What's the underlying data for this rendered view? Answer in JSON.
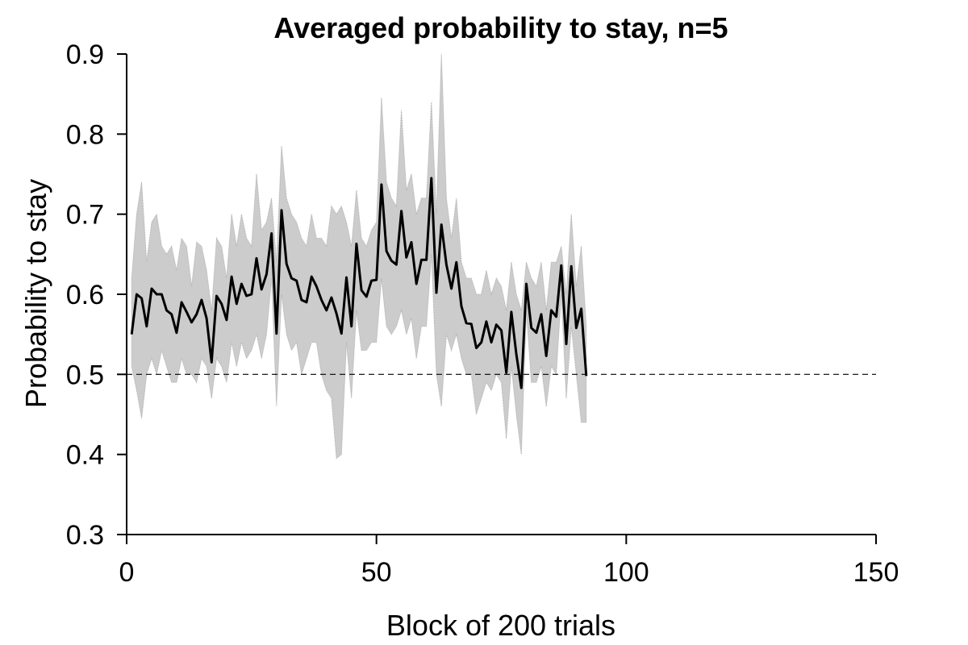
{
  "chart_data": {
    "type": "line",
    "title": "Averaged probability to stay, n=5",
    "xlabel": "Block of 200 trials",
    "ylabel": "Probability to stay",
    "xlim": [
      0,
      150
    ],
    "ylim": [
      0.3,
      0.9
    ],
    "xticks": [
      0,
      50,
      100,
      150
    ],
    "yticks": [
      0.3,
      0.4,
      0.5,
      0.6,
      0.7,
      0.8,
      0.9
    ],
    "xtick_labels": [
      "0",
      "50",
      "100",
      "150"
    ],
    "ytick_labels": [
      "0.3",
      "0.4",
      "0.5",
      "0.6",
      "0.7",
      "0.8",
      "0.9"
    ],
    "reference_line": {
      "y": 0.5,
      "style": "dashed"
    },
    "grid": false,
    "colors": {
      "mean": "#000000",
      "band": "#cccccc",
      "reference": "#000000"
    },
    "series": [
      {
        "x": [
          1,
          2,
          3,
          4,
          5,
          6,
          7,
          8,
          9,
          10,
          11,
          12,
          13,
          14,
          15,
          16,
          17,
          18,
          19,
          20,
          21,
          22,
          23,
          24,
          25,
          26,
          27,
          28,
          29,
          30,
          31,
          32,
          33,
          34,
          35,
          36,
          37,
          38,
          39,
          40,
          41,
          42,
          43,
          44,
          45,
          46,
          47,
          48,
          49,
          50,
          51,
          52,
          53,
          54,
          55,
          56,
          57,
          58,
          59,
          60,
          61,
          62,
          63,
          64,
          65,
          66,
          67,
          68,
          69,
          70,
          71,
          72,
          73,
          74,
          75,
          76,
          77,
          78,
          79,
          80,
          81,
          82,
          83,
          84,
          85,
          86,
          87,
          88,
          89,
          90,
          91,
          92
        ],
        "mean": [
          0.55,
          0.6,
          0.595,
          0.56,
          0.607,
          0.6,
          0.6,
          0.58,
          0.575,
          0.552,
          0.59,
          0.578,
          0.565,
          0.575,
          0.593,
          0.57,
          0.515,
          0.598,
          0.588,
          0.568,
          0.622,
          0.588,
          0.613,
          0.598,
          0.6,
          0.645,
          0.606,
          0.625,
          0.676,
          0.551,
          0.705,
          0.638,
          0.62,
          0.617,
          0.593,
          0.59,
          0.622,
          0.61,
          0.593,
          0.58,
          0.596,
          0.576,
          0.551,
          0.621,
          0.56,
          0.663,
          0.605,
          0.597,
          0.617,
          0.618,
          0.737,
          0.654,
          0.642,
          0.637,
          0.704,
          0.646,
          0.665,
          0.613,
          0.643,
          0.643,
          0.745,
          0.602,
          0.687,
          0.637,
          0.607,
          0.64,
          0.585,
          0.564,
          0.563,
          0.533,
          0.54,
          0.566,
          0.54,
          0.562,
          0.555,
          0.502,
          0.578,
          0.525,
          0.483,
          0.613,
          0.558,
          0.552,
          0.575,
          0.523,
          0.58,
          0.572,
          0.636,
          0.538,
          0.635,
          0.558,
          0.582,
          0.498
        ],
        "upper": [
          0.62,
          0.7,
          0.74,
          0.64,
          0.69,
          0.7,
          0.66,
          0.65,
          0.66,
          0.63,
          0.67,
          0.66,
          0.61,
          0.665,
          0.66,
          0.63,
          0.58,
          0.67,
          0.66,
          0.62,
          0.7,
          0.66,
          0.7,
          0.67,
          0.66,
          0.75,
          0.68,
          0.69,
          0.72,
          0.64,
          0.785,
          0.72,
          0.7,
          0.69,
          0.67,
          0.66,
          0.7,
          0.67,
          0.67,
          0.66,
          0.71,
          0.7,
          0.71,
          0.69,
          0.66,
          0.73,
          0.67,
          0.66,
          0.68,
          0.69,
          0.845,
          0.74,
          0.72,
          0.71,
          0.83,
          0.73,
          0.75,
          0.7,
          0.72,
          0.72,
          0.84,
          0.7,
          0.9,
          0.72,
          0.67,
          0.72,
          0.64,
          0.62,
          0.62,
          0.6,
          0.6,
          0.63,
          0.6,
          0.62,
          0.61,
          0.58,
          0.64,
          0.6,
          0.58,
          0.64,
          0.62,
          0.61,
          0.64,
          0.58,
          0.64,
          0.64,
          0.66,
          0.6,
          0.7,
          0.61,
          0.66,
          0.56
        ],
        "lower": [
          0.51,
          0.48,
          0.445,
          0.5,
          0.52,
          0.5,
          0.53,
          0.51,
          0.49,
          0.49,
          0.52,
          0.5,
          0.5,
          0.49,
          0.52,
          0.51,
          0.47,
          0.52,
          0.51,
          0.49,
          0.54,
          0.51,
          0.54,
          0.52,
          0.53,
          0.55,
          0.52,
          0.55,
          0.62,
          0.46,
          0.6,
          0.55,
          0.53,
          0.54,
          0.5,
          0.52,
          0.54,
          0.54,
          0.5,
          0.48,
          0.47,
          0.395,
          0.4,
          0.54,
          0.47,
          0.58,
          0.53,
          0.53,
          0.54,
          0.54,
          0.62,
          0.56,
          0.55,
          0.56,
          0.58,
          0.55,
          0.57,
          0.52,
          0.56,
          0.56,
          0.65,
          0.5,
          0.46,
          0.55,
          0.53,
          0.55,
          0.52,
          0.5,
          0.5,
          0.45,
          0.47,
          0.49,
          0.48,
          0.5,
          0.49,
          0.42,
          0.51,
          0.45,
          0.4,
          0.58,
          0.49,
          0.49,
          0.51,
          0.46,
          0.51,
          0.5,
          0.6,
          0.47,
          0.56,
          0.5,
          0.44,
          0.44
        ]
      }
    ]
  }
}
